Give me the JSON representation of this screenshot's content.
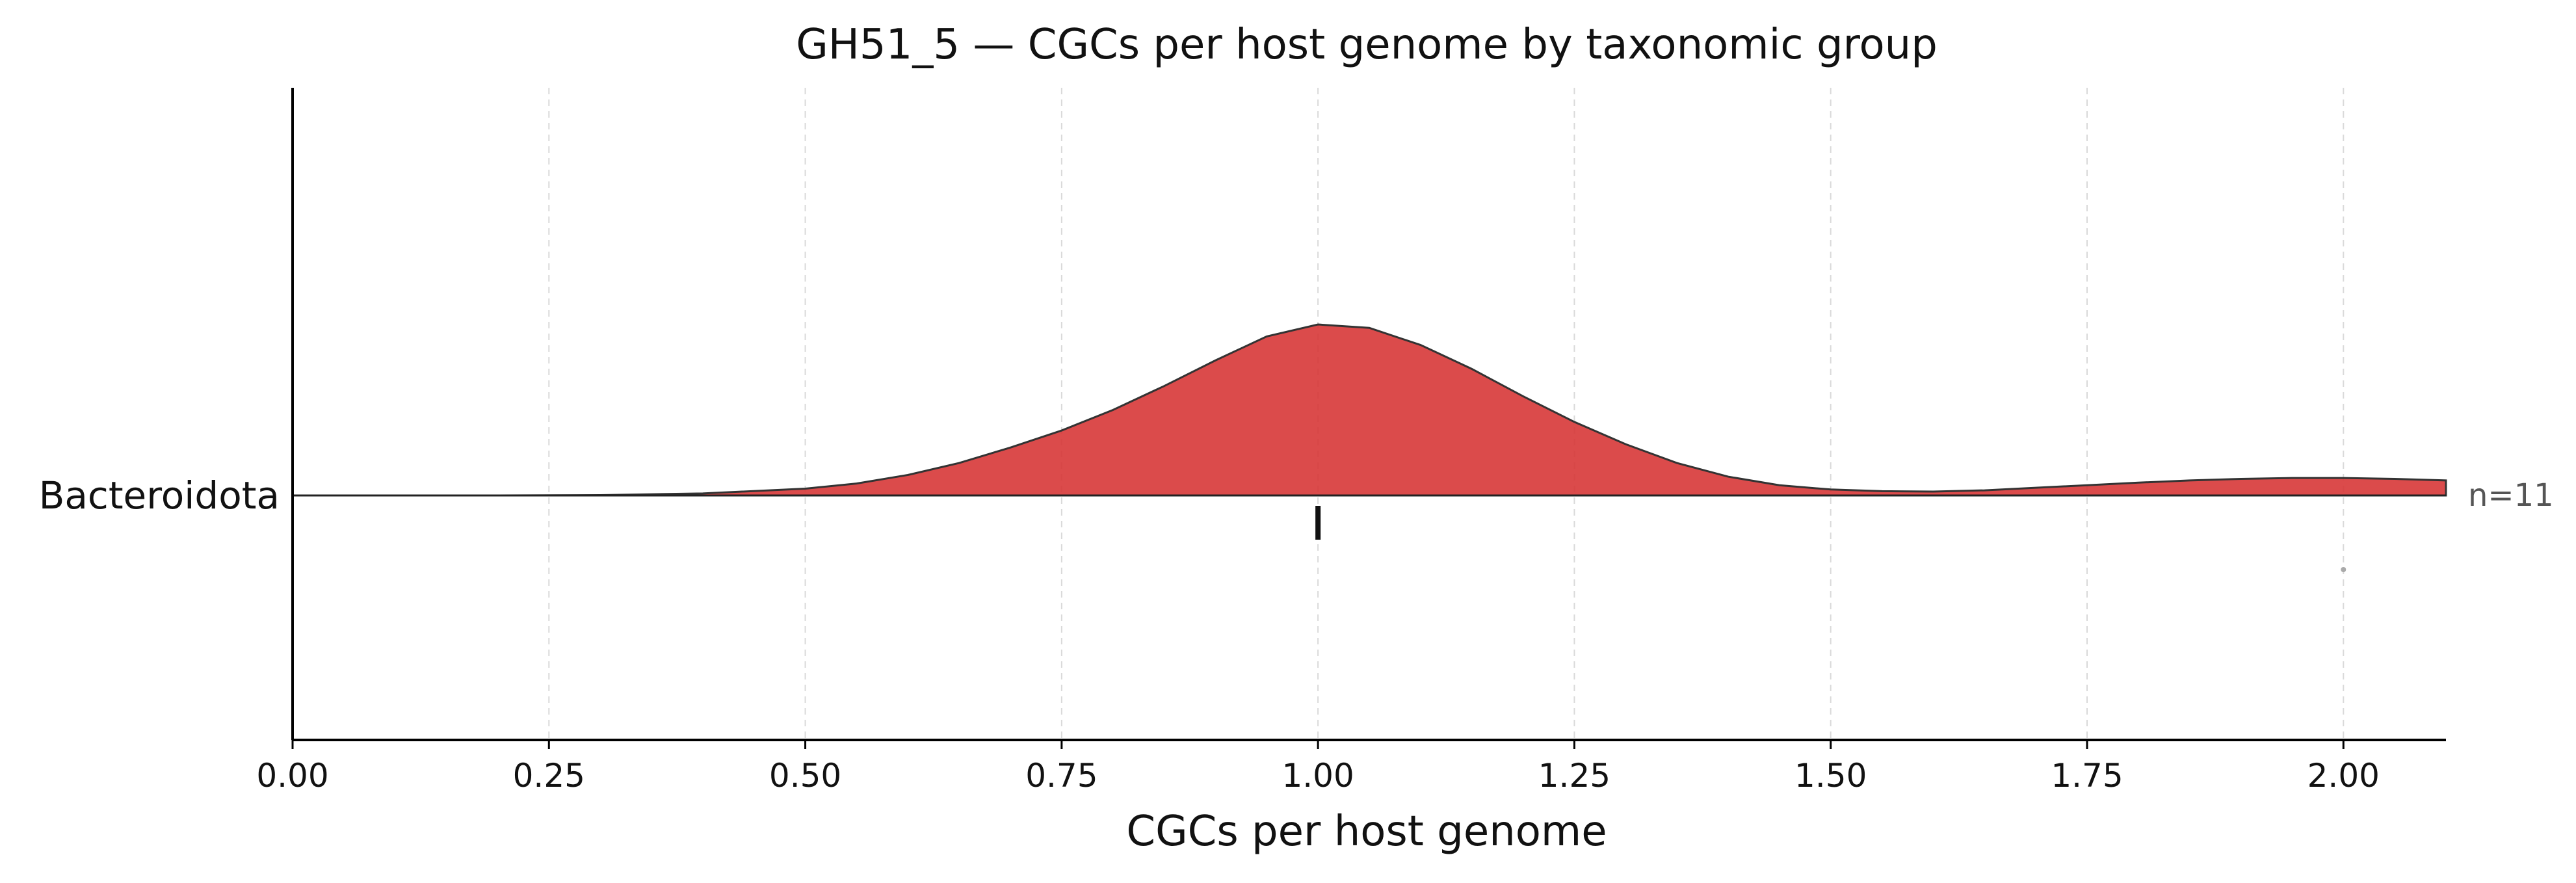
{
  "chart_data": {
    "type": "ridgeline",
    "title": "GH51_5 — CGCs per host genome by taxonomic group",
    "xlabel": "CGCs per host genome",
    "ylabel": "",
    "xlim": [
      0,
      2.1
    ],
    "x_ticks": [
      0.0,
      0.25,
      0.5,
      0.75,
      1.0,
      1.25,
      1.5,
      1.75,
      2.0
    ],
    "x_tick_labels": [
      "0.00",
      "0.25",
      "0.50",
      "0.75",
      "1.00",
      "1.25",
      "1.50",
      "1.75",
      "2.00"
    ],
    "grid": "vertical dashed",
    "legend": "none",
    "groups": [
      {
        "name": "Bacteroidota",
        "n_label": "n=11",
        "color": "#d63232",
        "median": 1.0,
        "kde": {
          "x": [
            0.0,
            0.1,
            0.2,
            0.3,
            0.4,
            0.5,
            0.55,
            0.6,
            0.65,
            0.7,
            0.75,
            0.8,
            0.85,
            0.9,
            0.95,
            1.0,
            1.05,
            1.1,
            1.15,
            1.2,
            1.25,
            1.3,
            1.35,
            1.4,
            1.45,
            1.5,
            1.55,
            1.6,
            1.65,
            1.7,
            1.75,
            1.8,
            1.85,
            1.9,
            1.95,
            2.0,
            2.05,
            2.1
          ],
          "density": [
            0.0,
            0.0,
            0.0,
            0.002,
            0.012,
            0.04,
            0.07,
            0.12,
            0.19,
            0.28,
            0.38,
            0.5,
            0.64,
            0.79,
            0.93,
            1.0,
            0.98,
            0.88,
            0.74,
            0.58,
            0.43,
            0.3,
            0.19,
            0.11,
            0.06,
            0.035,
            0.025,
            0.023,
            0.03,
            0.045,
            0.06,
            0.075,
            0.088,
            0.097,
            0.102,
            0.102,
            0.097,
            0.088
          ]
        },
        "points": [
          2.0
        ]
      }
    ]
  }
}
